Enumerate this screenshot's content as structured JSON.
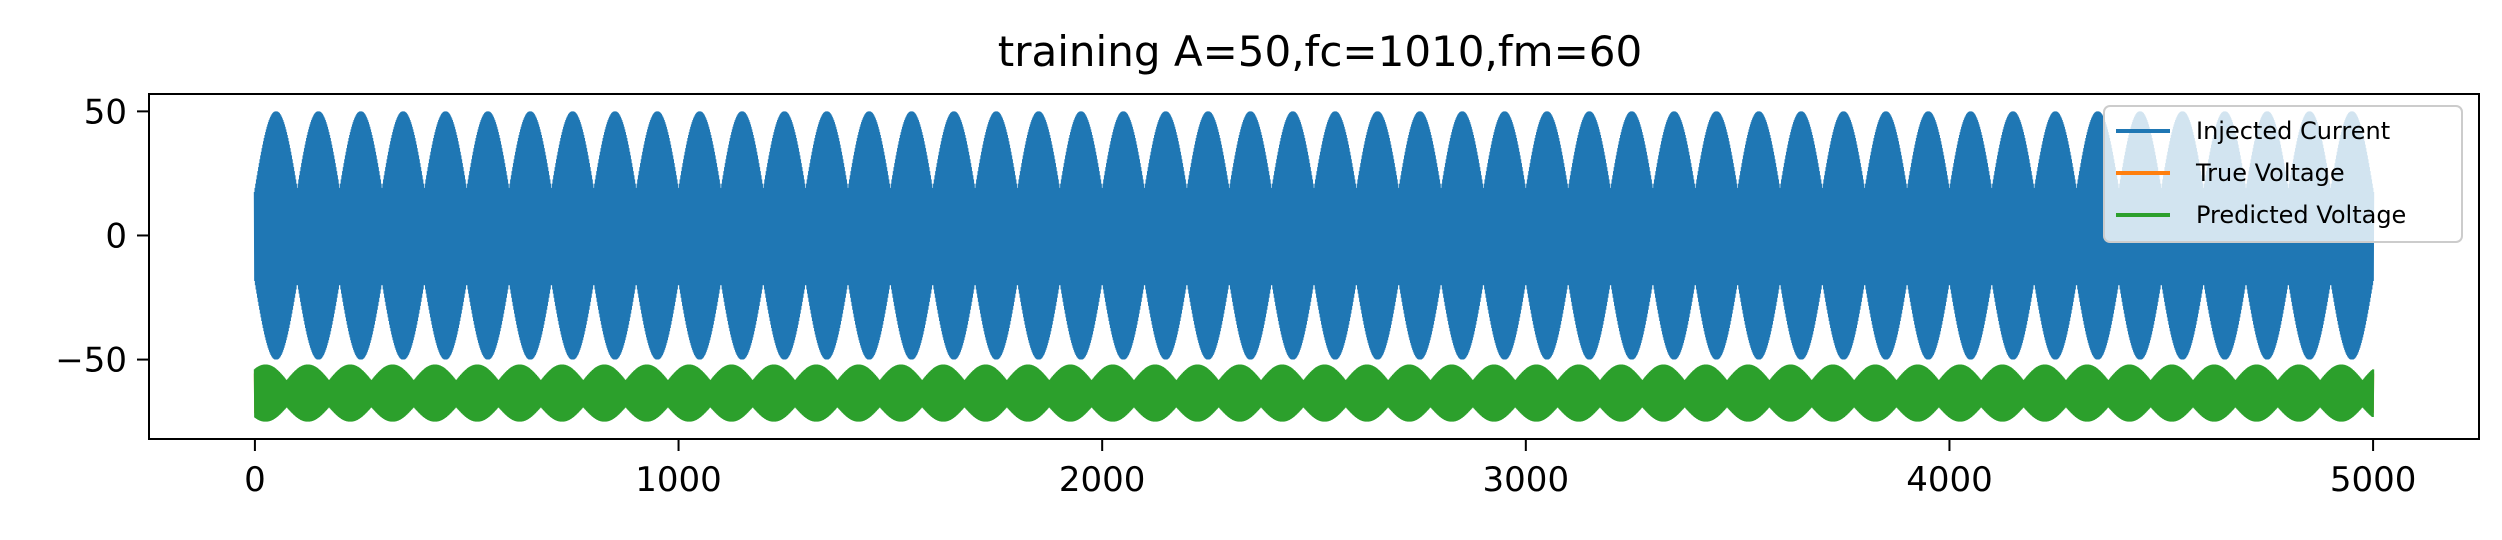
{
  "chart_data": {
    "type": "line",
    "title": "training A=50,fc=1010,fm=60",
    "xlabel": "",
    "ylabel": "",
    "xlim": [
      -250,
      5250
    ],
    "ylim": [
      -82,
      57
    ],
    "xticks": [
      0,
      1000,
      2000,
      3000,
      4000,
      5000
    ],
    "xtick_labels": [
      "0",
      "1000",
      "2000",
      "3000",
      "4000",
      "5000"
    ],
    "yticks": [
      50,
      0,
      -50
    ],
    "ytick_labels": [
      "50",
      "0",
      "−50"
    ],
    "grid": false,
    "legend_position": "top-right",
    "x_range": [
      0,
      5000
    ],
    "series": [
      {
        "name": "Injected Current",
        "color": "#1f77b4",
        "description": "AM signal: carrier fc=1010 modulated at fm=60, amplitude A=50",
        "amplitude": 50,
        "offset": 0,
        "envelope_cycles": 50
      },
      {
        "name": "True Voltage",
        "color": "#ff7f0e",
        "amplitude_band": [
          -73,
          -54
        ],
        "offset": -64,
        "envelope_cycles": 50
      },
      {
        "name": "Predicted Voltage",
        "color": "#2ca02c",
        "amplitude_band": [
          -75,
          -52
        ],
        "offset": -64,
        "envelope_cycles": 50
      }
    ]
  }
}
